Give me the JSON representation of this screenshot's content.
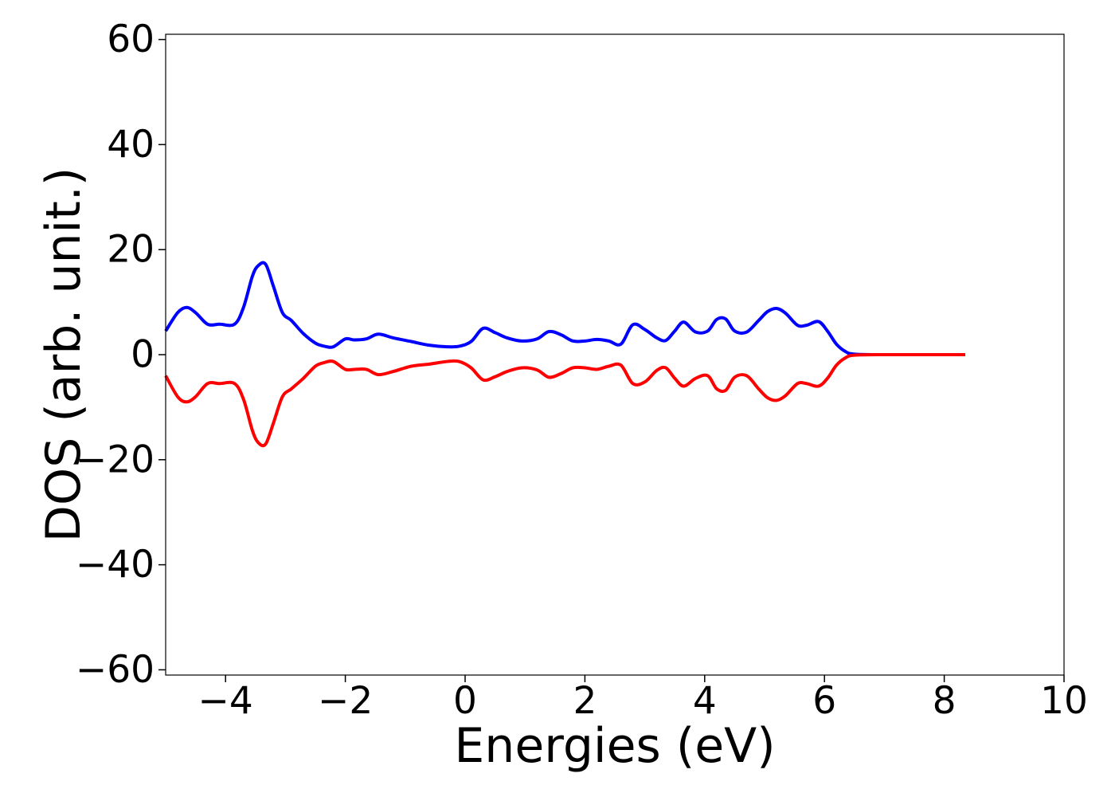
{
  "chart_data": {
    "type": "line",
    "title": "",
    "xlabel": "Energies (eV)",
    "ylabel": "DOS (arb. unit.)",
    "xlim": [
      -5,
      10
    ],
    "ylim": [
      -61,
      61
    ],
    "xticks": [
      -4,
      -2,
      0,
      2,
      4,
      6,
      8,
      10
    ],
    "xtick_labels": [
      "−4",
      "−2",
      "0",
      "2",
      "4",
      "6",
      "8",
      "10"
    ],
    "yticks": [
      -60,
      -40,
      -20,
      0,
      20,
      40,
      60
    ],
    "ytick_labels": [
      "−60",
      "−40",
      "−20",
      "0",
      "20",
      "40",
      "60"
    ],
    "grid": false,
    "legend": "none",
    "series": [
      {
        "color": "#0000ff",
        "x": [
          -5.0,
          -4.8,
          -4.65,
          -4.5,
          -4.3,
          -4.1,
          -3.85,
          -3.7,
          -3.55,
          -3.45,
          -3.33,
          -3.2,
          -3.05,
          -2.9,
          -2.7,
          -2.5,
          -2.35,
          -2.2,
          -2.0,
          -1.85,
          -1.65,
          -1.45,
          -1.2,
          -0.9,
          -0.6,
          -0.3,
          -0.1,
          0.1,
          0.3,
          0.5,
          0.7,
          0.95,
          1.2,
          1.4,
          1.6,
          1.8,
          2.0,
          2.2,
          2.4,
          2.6,
          2.8,
          3.0,
          3.2,
          3.35,
          3.5,
          3.65,
          3.85,
          4.05,
          4.2,
          4.35,
          4.5,
          4.7,
          4.9,
          5.05,
          5.2,
          5.35,
          5.55,
          5.7,
          5.9,
          6.05,
          6.2,
          6.35,
          6.5,
          7.0,
          8.0,
          8.35
        ],
        "y": [
          4.5,
          8.0,
          9.0,
          8.0,
          5.8,
          5.8,
          5.8,
          9.0,
          15.0,
          17.0,
          17.2,
          13.0,
          8.0,
          6.5,
          4.0,
          2.2,
          1.6,
          1.5,
          3.0,
          2.8,
          3.0,
          3.9,
          3.2,
          2.5,
          1.8,
          1.5,
          1.6,
          2.5,
          5.0,
          4.2,
          3.2,
          2.6,
          3.0,
          4.4,
          3.8,
          2.6,
          2.6,
          2.9,
          2.6,
          2.0,
          5.7,
          4.8,
          3.2,
          2.7,
          4.5,
          6.2,
          4.3,
          4.5,
          6.7,
          6.8,
          4.5,
          4.3,
          6.5,
          8.2,
          8.8,
          7.9,
          5.6,
          5.6,
          6.3,
          4.5,
          2.0,
          0.6,
          0.1,
          0.0,
          0.0,
          0.0
        ]
      },
      {
        "color": "#ff0000",
        "x": [
          -5.0,
          -4.8,
          -4.65,
          -4.5,
          -4.3,
          -4.1,
          -3.85,
          -3.7,
          -3.55,
          -3.45,
          -3.33,
          -3.2,
          -3.05,
          -2.9,
          -2.7,
          -2.5,
          -2.35,
          -2.2,
          -2.0,
          -1.85,
          -1.65,
          -1.45,
          -1.2,
          -0.9,
          -0.6,
          -0.3,
          -0.1,
          0.1,
          0.3,
          0.5,
          0.7,
          0.95,
          1.2,
          1.4,
          1.6,
          1.8,
          2.0,
          2.2,
          2.4,
          2.6,
          2.8,
          3.0,
          3.2,
          3.35,
          3.5,
          3.65,
          3.85,
          4.05,
          4.2,
          4.35,
          4.5,
          4.7,
          4.9,
          5.05,
          5.2,
          5.35,
          5.55,
          5.7,
          5.9,
          6.05,
          6.2,
          6.35,
          6.5,
          7.0,
          8.0,
          8.35
        ],
        "y": [
          -4.0,
          -8.0,
          -9.0,
          -8.0,
          -5.5,
          -5.5,
          -5.5,
          -8.5,
          -14.5,
          -16.8,
          -17.0,
          -13.0,
          -8.0,
          -6.5,
          -4.5,
          -2.2,
          -1.5,
          -1.3,
          -2.8,
          -2.8,
          -2.8,
          -3.8,
          -3.2,
          -2.2,
          -1.8,
          -1.3,
          -1.3,
          -2.5,
          -4.8,
          -4.2,
          -3.2,
          -2.5,
          -2.9,
          -4.3,
          -3.6,
          -2.5,
          -2.5,
          -2.8,
          -2.2,
          -2.0,
          -5.5,
          -5.2,
          -3.0,
          -2.5,
          -4.5,
          -6.0,
          -4.5,
          -4.0,
          -6.5,
          -6.8,
          -4.3,
          -4.0,
          -6.5,
          -8.2,
          -8.7,
          -7.8,
          -5.5,
          -5.5,
          -6.0,
          -4.5,
          -2.0,
          -0.6,
          -0.1,
          0.0,
          0.0,
          0.0
        ]
      }
    ]
  }
}
